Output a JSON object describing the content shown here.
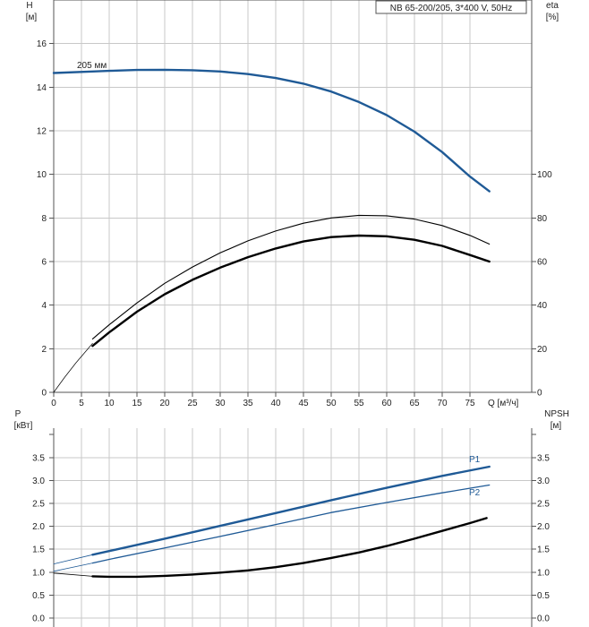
{
  "colors": {
    "blue": "#1f5a96",
    "black": "#000000",
    "grid": "#c8c8c8"
  },
  "chart_data": [
    {
      "type": "line",
      "panel": "top",
      "info_box": "NB 65-200/205, 3*400 V, 50Hz",
      "curve_label": "205 мм",
      "left_axis": {
        "label_line1": "H",
        "label_line2": "[м]",
        "min": 0,
        "max": 18,
        "ticks": [
          0,
          2,
          4,
          6,
          8,
          10,
          12,
          14,
          16
        ]
      },
      "right_axis": {
        "label_line1": "eta",
        "label_line2": "[%]",
        "min": 0,
        "max": 180,
        "ticks": [
          0,
          20,
          40,
          60,
          80,
          100
        ]
      },
      "x_axis": {
        "label": "Q [м³/ч]",
        "min": 0,
        "max": 86,
        "ticks": [
          0,
          5,
          10,
          15,
          20,
          25,
          30,
          35,
          40,
          45,
          50,
          55,
          60,
          65,
          70,
          75
        ]
      },
      "grid": true,
      "series": [
        {
          "key": "head",
          "axis": "left",
          "color": "blue",
          "width": 2.4,
          "x": [
            0,
            7,
            10,
            15,
            20,
            25,
            30,
            35,
            40,
            45,
            50,
            55,
            60,
            65,
            70,
            75,
            78.5
          ],
          "y": [
            14.65,
            14.72,
            14.75,
            14.79,
            14.8,
            14.78,
            14.72,
            14.6,
            14.42,
            14.16,
            13.8,
            13.32,
            12.72,
            11.96,
            11.02,
            9.9,
            9.22
          ]
        },
        {
          "key": "eta_thin",
          "axis": "right",
          "color": "black",
          "width": 1.1,
          "x": [
            7,
            10,
            15,
            20,
            25,
            30,
            35,
            40,
            45,
            50,
            55,
            60,
            65,
            70,
            75,
            78.5
          ],
          "y": [
            24.5,
            31,
            41,
            50,
            57.5,
            64,
            69.5,
            74,
            77.6,
            80,
            81.2,
            81,
            79.5,
            76.5,
            72,
            68
          ]
        },
        {
          "key": "eta_thick",
          "axis": "right",
          "color": "black",
          "width": 2.4,
          "x": [
            7,
            10,
            15,
            20,
            25,
            30,
            35,
            40,
            45,
            50,
            55,
            60,
            65,
            70,
            75,
            78.5
          ],
          "y": [
            21.3,
            27.5,
            37,
            45,
            51.6,
            57.2,
            62,
            66,
            69.2,
            71.2,
            71.9,
            71.6,
            70,
            67.2,
            63,
            60
          ]
        },
        {
          "key": "eta_ext",
          "axis": "right",
          "color": "black",
          "width": 0.7,
          "x": [
            0,
            2,
            4,
            6,
            7
          ],
          "y": [
            0,
            7,
            13.5,
            19.5,
            22.5
          ]
        }
      ]
    },
    {
      "type": "line",
      "panel": "bottom",
      "left_axis": {
        "label_line1": "P",
        "label_line2": "[кВт]",
        "min": 0,
        "max": 4,
        "ticks": [
          "0.0",
          "0.5",
          "1.0",
          "1.5",
          "2.0",
          "2.5",
          "3.0",
          "3.5"
        ]
      },
      "right_axis": {
        "label_line1": "NPSH",
        "label_line2": "[м]",
        "min": 0,
        "max": 4,
        "ticks": [
          "0.0",
          "0.5",
          "1.0",
          "1.5",
          "2.0",
          "2.5",
          "3.0",
          "3.5"
        ]
      },
      "x_axis": {
        "min": 0,
        "max": 86,
        "ticks": [
          0,
          5,
          10,
          15,
          20,
          25,
          30,
          35,
          40,
          45,
          50,
          55,
          60,
          65,
          70,
          75
        ]
      },
      "grid": true,
      "series": [
        {
          "key": "p1",
          "name": "P1",
          "axis": "left",
          "color": "blue",
          "width": 2.4,
          "x": [
            7,
            10,
            20,
            30,
            40,
            50,
            60,
            70,
            78.5
          ],
          "y": [
            1.38,
            1.46,
            1.73,
            2.01,
            2.29,
            2.57,
            2.84,
            3.1,
            3.3
          ]
        },
        {
          "key": "p1_ext",
          "axis": "left",
          "color": "blue",
          "width": 0.8,
          "x": [
            0,
            7
          ],
          "y": [
            1.18,
            1.38
          ]
        },
        {
          "key": "p2",
          "name": "P2",
          "axis": "left",
          "color": "blue",
          "width": 1.3,
          "x": [
            7,
            10,
            20,
            30,
            40,
            50,
            60,
            70,
            78.5
          ],
          "y": [
            1.2,
            1.28,
            1.53,
            1.78,
            2.04,
            2.3,
            2.52,
            2.73,
            2.9
          ]
        },
        {
          "key": "p2_ext",
          "axis": "left",
          "color": "blue",
          "width": 0.8,
          "x": [
            0,
            7
          ],
          "y": [
            1.02,
            1.2
          ]
        },
        {
          "key": "npsh",
          "axis": "right",
          "color": "black",
          "width": 2.4,
          "x": [
            7,
            10,
            15,
            20,
            25,
            30,
            35,
            40,
            45,
            50,
            55,
            60,
            65,
            70,
            75,
            78
          ],
          "y": [
            0.91,
            0.9,
            0.9,
            0.92,
            0.95,
            0.99,
            1.04,
            1.11,
            1.2,
            1.31,
            1.43,
            1.57,
            1.73,
            1.9,
            2.07,
            2.18
          ]
        },
        {
          "key": "npsh_ext",
          "axis": "right",
          "color": "black",
          "width": 0.8,
          "x": [
            0,
            7
          ],
          "y": [
            0.98,
            0.91
          ]
        }
      ]
    }
  ]
}
